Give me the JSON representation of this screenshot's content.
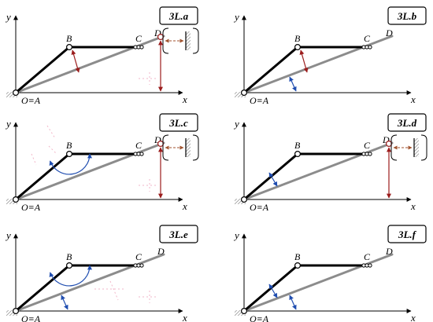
{
  "axes": {
    "x_label": "x",
    "y_label": "y"
  },
  "points": {
    "b": "B",
    "c": "C",
    "d": "D",
    "origin": "O≡A"
  },
  "colors": {
    "link": "#000000",
    "line": "#8c8c8c",
    "red_arrow": "#9b1c1c",
    "blue_arrow": "#1f4db0",
    "brown_arrow": "#a0522d",
    "pink_marks": "#f2b6c8",
    "hatch": "#777777"
  },
  "panels": [
    {
      "id": "3L.a",
      "label": "3L.a",
      "has_wall": true,
      "red_vertical": true,
      "red_link_arrow": true,
      "blue_link_arrow": false,
      "blue_angle_link": false,
      "blue_angle_axis": false
    },
    {
      "id": "3L.b",
      "label": "3L.b",
      "has_wall": false,
      "red_vertical": false,
      "red_link_arrow": true,
      "blue_link_arrow": false,
      "blue_angle_link": false,
      "blue_angle_axis": true
    },
    {
      "id": "3L.c",
      "label": "3L.c",
      "has_wall": true,
      "red_vertical": true,
      "red_link_arrow": false,
      "blue_link_arrow": false,
      "blue_angle_link": true,
      "blue_angle_axis": false
    },
    {
      "id": "3L.d",
      "label": "3L.d",
      "has_wall": true,
      "red_vertical": true,
      "red_link_arrow": false,
      "blue_link_arrow": true,
      "blue_angle_link": false,
      "blue_angle_axis": false
    },
    {
      "id": "3L.e",
      "label": "3L.e",
      "has_wall": false,
      "red_vertical": false,
      "red_link_arrow": false,
      "blue_link_arrow": false,
      "blue_angle_link": true,
      "blue_angle_axis": true
    },
    {
      "id": "3L.f",
      "label": "3L.f",
      "has_wall": false,
      "red_vertical": false,
      "red_link_arrow": false,
      "blue_link_arrow": true,
      "blue_angle_link": false,
      "blue_angle_axis": true
    }
  ]
}
